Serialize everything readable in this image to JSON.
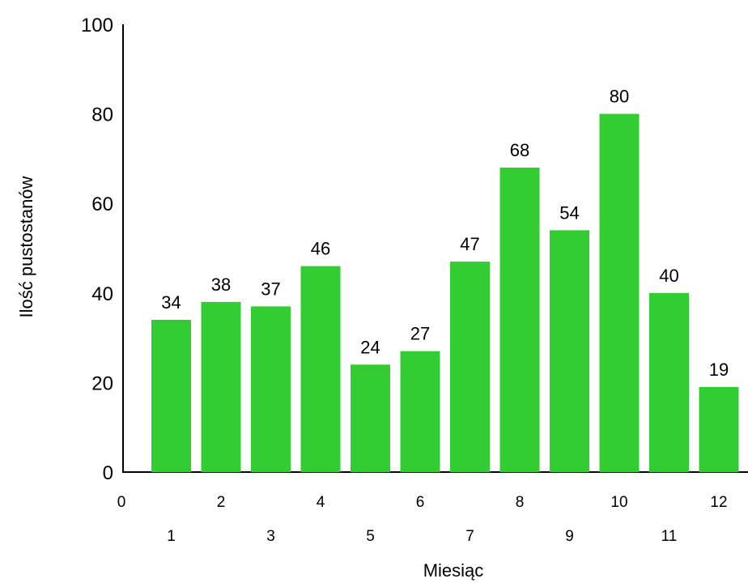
{
  "chart_data": {
    "type": "bar",
    "categories": [
      "1",
      "2",
      "3",
      "4",
      "5",
      "6",
      "7",
      "8",
      "9",
      "10",
      "11",
      "12"
    ],
    "values": [
      34,
      38,
      37,
      46,
      24,
      27,
      47,
      68,
      54,
      80,
      40,
      19
    ],
    "xlabel": "Miesiąc",
    "ylabel": "Ilość pustostanów",
    "ylim": [
      0,
      100
    ],
    "yticks": [
      "0",
      "20",
      "40",
      "60",
      "80",
      "100"
    ],
    "xtick_row1": [
      "0",
      "2",
      "4",
      "6",
      "8",
      "10",
      "12"
    ],
    "xtick_row2": [
      "1",
      "3",
      "5",
      "7",
      "9",
      "11"
    ],
    "bar_color": "#33cc33",
    "grid": false,
    "legend": "none"
  }
}
